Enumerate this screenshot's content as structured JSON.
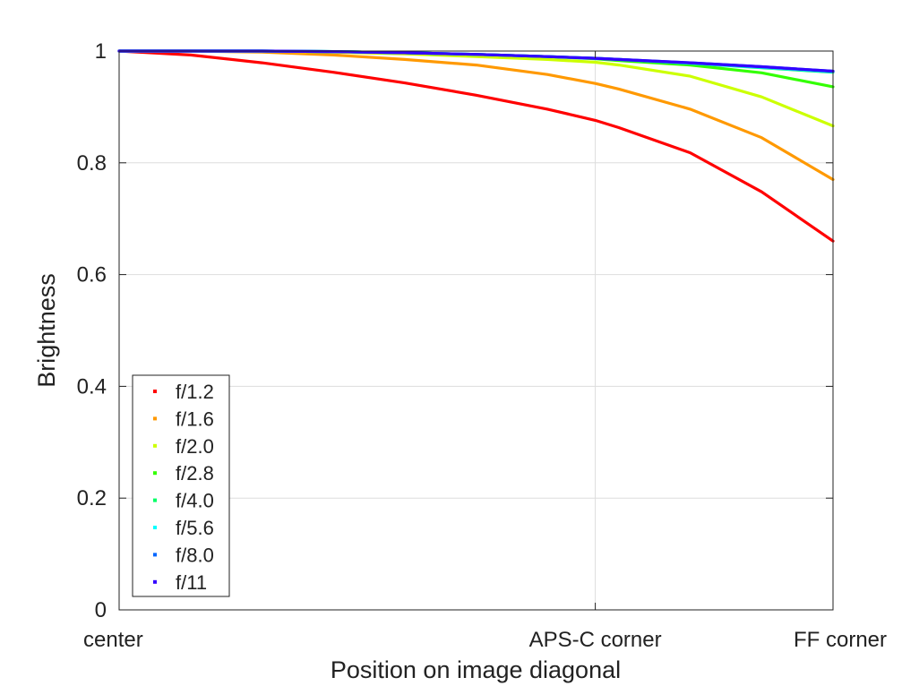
{
  "chart_data": {
    "type": "line",
    "title": "",
    "xlabel": "Position on image diagonal",
    "ylabel": "Brightness",
    "x_ticks": [
      {
        "value": 0.0,
        "label": "center"
      },
      {
        "value": 0.667,
        "label": "APS-C corner"
      },
      {
        "value": 1.0,
        "label": "FF corner"
      }
    ],
    "y_ticks": [
      {
        "value": 0,
        "label": "0"
      },
      {
        "value": 0.2,
        "label": "0.2"
      },
      {
        "value": 0.4,
        "label": "0.4"
      },
      {
        "value": 0.6,
        "label": "0.6"
      },
      {
        "value": 0.8,
        "label": "0.8"
      },
      {
        "value": 1,
        "label": "1"
      }
    ],
    "xlim": [
      0,
      1
    ],
    "ylim": [
      0,
      1
    ],
    "grid": true,
    "legend_position": "bottom-left",
    "x": [
      0,
      0.1,
      0.2,
      0.3,
      0.4,
      0.5,
      0.6,
      0.667,
      0.7,
      0.8,
      0.9,
      1.0
    ],
    "series": [
      {
        "name": "f/1.2",
        "color": "#ff0000",
        "values": [
          1.0,
          0.993,
          0.979,
          0.962,
          0.943,
          0.921,
          0.896,
          0.876,
          0.863,
          0.818,
          0.748,
          0.66
        ]
      },
      {
        "name": "f/1.6",
        "color": "#ff9900",
        "values": [
          1.0,
          1.0,
          0.998,
          0.993,
          0.985,
          0.975,
          0.958,
          0.942,
          0.932,
          0.896,
          0.845,
          0.77
        ]
      },
      {
        "name": "f/2.0",
        "color": "#ccff00",
        "values": [
          1.0,
          1.0,
          1.0,
          0.998,
          0.995,
          0.99,
          0.985,
          0.98,
          0.975,
          0.955,
          0.918,
          0.866
        ]
      },
      {
        "name": "f/2.8",
        "color": "#33ff00",
        "values": [
          1.0,
          1.0,
          1.0,
          0.999,
          0.997,
          0.994,
          0.99,
          0.986,
          0.983,
          0.975,
          0.961,
          0.936
        ]
      },
      {
        "name": "f/4.0",
        "color": "#00ff66",
        "values": [
          1.0,
          1.0,
          1.0,
          0.999,
          0.997,
          0.994,
          0.99,
          0.987,
          0.985,
          0.978,
          0.97,
          0.962
        ]
      },
      {
        "name": "f/5.6",
        "color": "#00ffff",
        "values": [
          1.0,
          1.0,
          1.0,
          0.999,
          0.997,
          0.994,
          0.99,
          0.987,
          0.985,
          0.978,
          0.971,
          0.963
        ]
      },
      {
        "name": "f/8.0",
        "color": "#0066ff",
        "values": [
          1.0,
          1.0,
          1.0,
          0.999,
          0.997,
          0.994,
          0.99,
          0.987,
          0.985,
          0.979,
          0.972,
          0.964
        ]
      },
      {
        "name": "f/11",
        "color": "#3300ff",
        "values": [
          1.0,
          1.0,
          1.0,
          0.999,
          0.997,
          0.994,
          0.99,
          0.987,
          0.985,
          0.979,
          0.972,
          0.964
        ]
      }
    ]
  }
}
